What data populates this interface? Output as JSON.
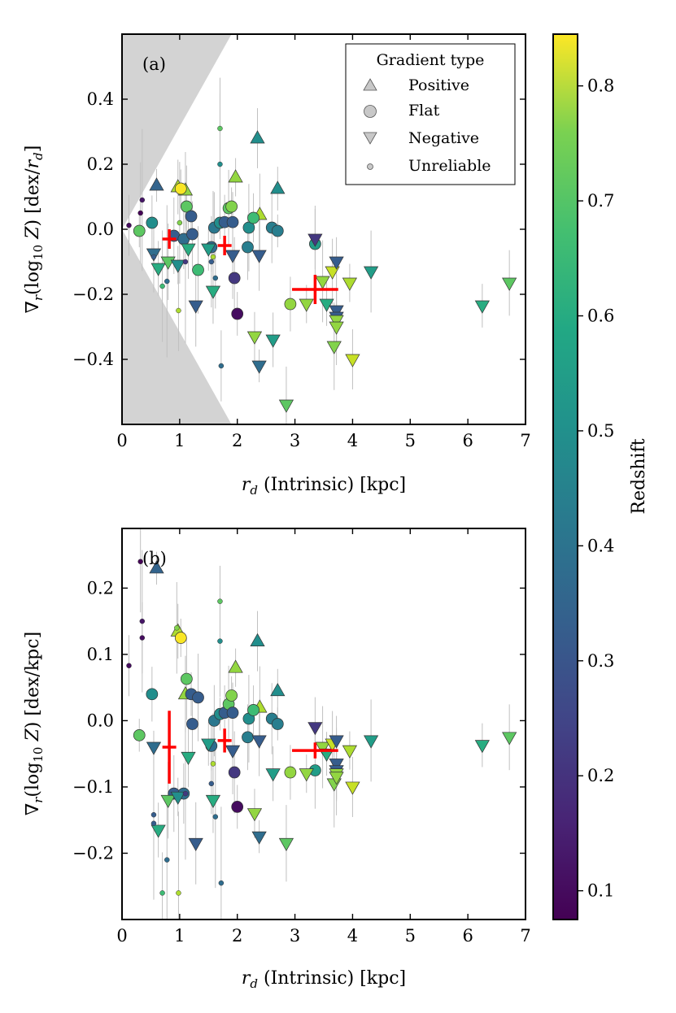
{
  "chart_data": [
    {
      "panel": "(a)",
      "type": "scatter",
      "xlabel": "r_d (Intrinsic) [kpc]",
      "ylabel": "∇_r(log10 Z) [dex/r_d]",
      "xlim": [
        0,
        7
      ],
      "ylim": [
        -0.6,
        0.6
      ],
      "xticks": [
        0,
        1,
        2,
        3,
        4,
        5,
        6,
        7
      ],
      "yticks": [
        -0.4,
        -0.2,
        0.0,
        0.2,
        0.4
      ],
      "ytick_labels": [
        "−0.4",
        "−0.2",
        "0.0",
        "0.2",
        "0.4"
      ],
      "grid": false,
      "shaded_region": "wedge from (0,0) to x = 1.9 (excluded region)",
      "legend": {
        "title": "Gradient type",
        "placement": "top-right",
        "entries": [
          "Positive",
          "Flat",
          "Negative",
          "Unreliable"
        ]
      },
      "binned_medians": [
        {
          "x": 0.82,
          "y": -0.03,
          "xerr": 0.12,
          "yerr": 0.03
        },
        {
          "x": 1.78,
          "y": -0.05,
          "xerr": 0.12,
          "yerr": 0.03
        },
        {
          "x": 3.35,
          "y": -0.185,
          "xerr": 0.4,
          "yerr": 0.045
        }
      ],
      "series": [
        {
          "type": "Positive",
          "points": [
            {
              "x": 0.6,
              "y": 0.135,
              "z": 0.32
            },
            {
              "x": 0.97,
              "y": 0.13,
              "z": 0.75
            },
            {
              "x": 1.1,
              "y": 0.12,
              "z": 0.72
            },
            {
              "x": 1.97,
              "y": 0.16,
              "z": 0.72
            },
            {
              "x": 2.35,
              "y": 0.28,
              "z": 0.45
            },
            {
              "x": 2.39,
              "y": 0.045,
              "z": 0.75
            },
            {
              "x": 2.7,
              "y": 0.125,
              "z": 0.45
            }
          ]
        },
        {
          "type": "Flat",
          "points": [
            {
              "x": 0.3,
              "y": -0.005,
              "z": 0.65
            },
            {
              "x": 0.52,
              "y": 0.02,
              "z": 0.45
            },
            {
              "x": 0.9,
              "y": -0.02,
              "z": 0.3
            },
            {
              "x": 1.02,
              "y": 0.125,
              "z": 0.84
            },
            {
              "x": 1.07,
              "y": -0.03,
              "z": 0.35
            },
            {
              "x": 1.12,
              "y": 0.07,
              "z": 0.65
            },
            {
              "x": 1.2,
              "y": 0.04,
              "z": 0.3
            },
            {
              "x": 1.22,
              "y": -0.015,
              "z": 0.3
            },
            {
              "x": 1.32,
              "y": -0.125,
              "z": 0.6
            },
            {
              "x": 1.55,
              "y": -0.055,
              "z": 0.35
            },
            {
              "x": 1.6,
              "y": 0.005,
              "z": 0.38
            },
            {
              "x": 1.7,
              "y": 0.02,
              "z": 0.45
            },
            {
              "x": 1.78,
              "y": 0.022,
              "z": 0.3
            },
            {
              "x": 1.85,
              "y": 0.065,
              "z": 0.65
            },
            {
              "x": 1.9,
              "y": 0.07,
              "z": 0.7
            },
            {
              "x": 1.92,
              "y": 0.022,
              "z": 0.3
            },
            {
              "x": 1.95,
              "y": -0.15,
              "z": 0.2
            },
            {
              "x": 2.0,
              "y": -0.26,
              "z": 0.1
            },
            {
              "x": 2.18,
              "y": -0.055,
              "z": 0.4
            },
            {
              "x": 2.2,
              "y": 0.005,
              "z": 0.45
            },
            {
              "x": 2.28,
              "y": 0.035,
              "z": 0.6
            },
            {
              "x": 2.6,
              "y": 0.005,
              "z": 0.4
            },
            {
              "x": 2.7,
              "y": -0.005,
              "z": 0.4
            },
            {
              "x": 2.92,
              "y": -0.23,
              "z": 0.72
            },
            {
              "x": 3.35,
              "y": -0.045,
              "z": 0.5
            }
          ]
        },
        {
          "type": "Negative",
          "points": [
            {
              "x": 0.55,
              "y": -0.075,
              "z": 0.35
            },
            {
              "x": 0.63,
              "y": -0.12,
              "z": 0.55
            },
            {
              "x": 0.8,
              "y": -0.1,
              "z": 0.65
            },
            {
              "x": 0.97,
              "y": -0.11,
              "z": 0.45
            },
            {
              "x": 1.15,
              "y": -0.06,
              "z": 0.55
            },
            {
              "x": 1.28,
              "y": -0.235,
              "z": 0.3
            },
            {
              "x": 1.5,
              "y": -0.06,
              "z": 0.5
            },
            {
              "x": 1.58,
              "y": -0.19,
              "z": 0.55
            },
            {
              "x": 1.92,
              "y": -0.08,
              "z": 0.3
            },
            {
              "x": 2.3,
              "y": -0.33,
              "z": 0.72
            },
            {
              "x": 2.38,
              "y": -0.08,
              "z": 0.3
            },
            {
              "x": 2.38,
              "y": -0.42,
              "z": 0.35
            },
            {
              "x": 2.62,
              "y": -0.34,
              "z": 0.5
            },
            {
              "x": 2.85,
              "y": -0.54,
              "z": 0.65
            },
            {
              "x": 3.2,
              "y": -0.23,
              "z": 0.72
            },
            {
              "x": 3.35,
              "y": -0.03,
              "z": 0.2
            },
            {
              "x": 3.48,
              "y": -0.16,
              "z": 0.72
            },
            {
              "x": 3.55,
              "y": -0.23,
              "z": 0.55
            },
            {
              "x": 3.65,
              "y": -0.13,
              "z": 0.78
            },
            {
              "x": 3.68,
              "y": -0.36,
              "z": 0.7
            },
            {
              "x": 3.72,
              "y": -0.1,
              "z": 0.3
            },
            {
              "x": 3.72,
              "y": -0.25,
              "z": 0.3
            },
            {
              "x": 3.72,
              "y": -0.27,
              "z": 0.3
            },
            {
              "x": 3.72,
              "y": -0.28,
              "z": 0.72
            },
            {
              "x": 3.72,
              "y": -0.3,
              "z": 0.72
            },
            {
              "x": 3.95,
              "y": -0.165,
              "z": 0.75
            },
            {
              "x": 4.0,
              "y": -0.4,
              "z": 0.78
            },
            {
              "x": 4.32,
              "y": -0.13,
              "z": 0.5
            },
            {
              "x": 6.25,
              "y": -0.235,
              "z": 0.55
            },
            {
              "x": 6.72,
              "y": -0.165,
              "z": 0.65
            }
          ]
        },
        {
          "type": "Unreliable",
          "points": [
            {
              "x": 0.12,
              "y": 0.012,
              "z": 0.1
            },
            {
              "x": 0.32,
              "y": 0.05,
              "z": 0.08
            },
            {
              "x": 0.35,
              "y": 0.09,
              "z": 0.12
            },
            {
              "x": 0.55,
              "y": -0.085,
              "z": 0.3
            },
            {
              "x": 0.7,
              "y": -0.175,
              "z": 0.6
            },
            {
              "x": 0.78,
              "y": -0.16,
              "z": 0.35
            },
            {
              "x": 0.98,
              "y": -0.25,
              "z": 0.75
            },
            {
              "x": 1.0,
              "y": 0.02,
              "z": 0.7
            },
            {
              "x": 1.1,
              "y": -0.1,
              "z": 0.2
            },
            {
              "x": 1.55,
              "y": -0.1,
              "z": 0.3
            },
            {
              "x": 1.58,
              "y": -0.085,
              "z": 0.75
            },
            {
              "x": 1.62,
              "y": -0.15,
              "z": 0.35
            },
            {
              "x": 1.7,
              "y": 0.31,
              "z": 0.65
            },
            {
              "x": 1.7,
              "y": 0.2,
              "z": 0.45
            },
            {
              "x": 1.72,
              "y": -0.42,
              "z": 0.35
            }
          ]
        }
      ]
    },
    {
      "panel": "(b)",
      "type": "scatter",
      "xlabel": "r_d (Intrinsic) [kpc]",
      "ylabel": "∇_r(log10 Z) [dex/kpc]",
      "xlim": [
        0,
        7
      ],
      "ylim": [
        -0.3,
        0.29
      ],
      "xticks": [
        0,
        1,
        2,
        3,
        4,
        5,
        6,
        7
      ],
      "yticks": [
        -0.2,
        -0.1,
        0.0,
        0.1,
        0.2
      ],
      "ytick_labels": [
        "−0.2",
        "−0.1",
        "0.0",
        "0.1",
        "0.2"
      ],
      "grid": false,
      "binned_medians": [
        {
          "x": 0.82,
          "y": -0.04,
          "xerr": 0.12,
          "yerr": 0.055
        },
        {
          "x": 1.78,
          "y": -0.03,
          "xerr": 0.12,
          "yerr": 0.018
        },
        {
          "x": 3.35,
          "y": -0.045,
          "xerr": 0.4,
          "yerr": 0.012
        }
      ],
      "series": [
        {
          "type": "Positive",
          "points": [
            {
              "x": 0.6,
              "y": 0.23,
              "z": 0.32
            },
            {
              "x": 0.97,
              "y": 0.135,
              "z": 0.75
            },
            {
              "x": 1.1,
              "y": 0.04,
              "z": 0.72
            },
            {
              "x": 1.97,
              "y": 0.08,
              "z": 0.72
            },
            {
              "x": 2.35,
              "y": 0.12,
              "z": 0.45
            },
            {
              "x": 2.39,
              "y": 0.02,
              "z": 0.75
            },
            {
              "x": 2.7,
              "y": 0.045,
              "z": 0.45
            }
          ]
        },
        {
          "type": "Flat",
          "points": [
            {
              "x": 0.3,
              "y": -0.022,
              "z": 0.65
            },
            {
              "x": 0.52,
              "y": 0.04,
              "z": 0.45
            },
            {
              "x": 0.9,
              "y": -0.11,
              "z": 0.3
            },
            {
              "x": 1.02,
              "y": 0.125,
              "z": 0.84
            },
            {
              "x": 1.07,
              "y": -0.11,
              "z": 0.35
            },
            {
              "x": 1.12,
              "y": 0.063,
              "z": 0.65
            },
            {
              "x": 1.2,
              "y": 0.04,
              "z": 0.3
            },
            {
              "x": 1.22,
              "y": -0.005,
              "z": 0.3
            },
            {
              "x": 1.32,
              "y": 0.035,
              "z": 0.3
            },
            {
              "x": 1.55,
              "y": -0.038,
              "z": 0.35
            },
            {
              "x": 1.6,
              "y": 0.0,
              "z": 0.38
            },
            {
              "x": 1.7,
              "y": 0.01,
              "z": 0.45
            },
            {
              "x": 1.78,
              "y": 0.012,
              "z": 0.3
            },
            {
              "x": 1.85,
              "y": 0.025,
              "z": 0.65
            },
            {
              "x": 1.9,
              "y": 0.038,
              "z": 0.7
            },
            {
              "x": 1.92,
              "y": 0.012,
              "z": 0.3
            },
            {
              "x": 1.95,
              "y": -0.078,
              "z": 0.2
            },
            {
              "x": 2.0,
              "y": -0.13,
              "z": 0.1
            },
            {
              "x": 2.18,
              "y": -0.025,
              "z": 0.4
            },
            {
              "x": 2.2,
              "y": 0.003,
              "z": 0.45
            },
            {
              "x": 2.28,
              "y": 0.016,
              "z": 0.6
            },
            {
              "x": 2.6,
              "y": 0.003,
              "z": 0.4
            },
            {
              "x": 2.7,
              "y": -0.005,
              "z": 0.4
            },
            {
              "x": 2.92,
              "y": -0.078,
              "z": 0.72
            },
            {
              "x": 3.35,
              "y": -0.075,
              "z": 0.5
            }
          ]
        },
        {
          "type": "Negative",
          "points": [
            {
              "x": 0.55,
              "y": -0.04,
              "z": 0.35
            },
            {
              "x": 0.63,
              "y": -0.165,
              "z": 0.55
            },
            {
              "x": 0.8,
              "y": -0.12,
              "z": 0.65
            },
            {
              "x": 0.97,
              "y": -0.115,
              "z": 0.45
            },
            {
              "x": 1.15,
              "y": -0.055,
              "z": 0.55
            },
            {
              "x": 1.28,
              "y": -0.185,
              "z": 0.3
            },
            {
              "x": 1.5,
              "y": -0.035,
              "z": 0.5
            },
            {
              "x": 1.58,
              "y": -0.12,
              "z": 0.55
            },
            {
              "x": 1.92,
              "y": -0.045,
              "z": 0.3
            },
            {
              "x": 2.3,
              "y": -0.14,
              "z": 0.72
            },
            {
              "x": 2.38,
              "y": -0.03,
              "z": 0.3
            },
            {
              "x": 2.38,
              "y": -0.175,
              "z": 0.35
            },
            {
              "x": 2.62,
              "y": -0.08,
              "z": 0.5
            },
            {
              "x": 2.85,
              "y": -0.185,
              "z": 0.65
            },
            {
              "x": 3.2,
              "y": -0.08,
              "z": 0.72
            },
            {
              "x": 3.35,
              "y": -0.01,
              "z": 0.2
            },
            {
              "x": 3.48,
              "y": -0.04,
              "z": 0.72
            },
            {
              "x": 3.55,
              "y": -0.05,
              "z": 0.55
            },
            {
              "x": 3.65,
              "y": -0.035,
              "z": 0.78
            },
            {
              "x": 3.68,
              "y": -0.095,
              "z": 0.7
            },
            {
              "x": 3.72,
              "y": -0.03,
              "z": 0.3
            },
            {
              "x": 3.72,
              "y": -0.065,
              "z": 0.3
            },
            {
              "x": 3.72,
              "y": -0.075,
              "z": 0.3
            },
            {
              "x": 3.72,
              "y": -0.08,
              "z": 0.72
            },
            {
              "x": 3.72,
              "y": -0.085,
              "z": 0.72
            },
            {
              "x": 3.95,
              "y": -0.045,
              "z": 0.75
            },
            {
              "x": 4.0,
              "y": -0.1,
              "z": 0.78
            },
            {
              "x": 4.32,
              "y": -0.03,
              "z": 0.5
            },
            {
              "x": 6.25,
              "y": -0.037,
              "z": 0.55
            },
            {
              "x": 6.72,
              "y": -0.025,
              "z": 0.65
            }
          ]
        },
        {
          "type": "Unreliable",
          "points": [
            {
              "x": 0.12,
              "y": 0.083,
              "z": 0.1
            },
            {
              "x": 0.32,
              "y": 0.24,
              "z": 0.08
            },
            {
              "x": 0.35,
              "y": 0.15,
              "z": 0.12
            },
            {
              "x": 0.35,
              "y": 0.125,
              "z": 0.1
            },
            {
              "x": 0.55,
              "y": -0.142,
              "z": 0.3
            },
            {
              "x": 0.55,
              "y": -0.155,
              "z": 0.3
            },
            {
              "x": 0.7,
              "y": -0.26,
              "z": 0.6
            },
            {
              "x": 0.78,
              "y": -0.21,
              "z": 0.35
            },
            {
              "x": 0.98,
              "y": -0.26,
              "z": 0.75
            },
            {
              "x": 0.95,
              "y": 0.14,
              "z": 0.7
            },
            {
              "x": 1.1,
              "y": -0.11,
              "z": 0.2
            },
            {
              "x": 1.55,
              "y": -0.095,
              "z": 0.3
            },
            {
              "x": 1.58,
              "y": -0.065,
              "z": 0.75
            },
            {
              "x": 1.62,
              "y": -0.145,
              "z": 0.35
            },
            {
              "x": 1.7,
              "y": 0.18,
              "z": 0.65
            },
            {
              "x": 1.7,
              "y": 0.12,
              "z": 0.45
            },
            {
              "x": 1.72,
              "y": -0.245,
              "z": 0.35
            }
          ]
        }
      ]
    }
  ],
  "colorbar": {
    "label": "Redshift",
    "range": [
      0.075,
      0.845
    ],
    "colormap": "viridis",
    "ticks": [
      0.1,
      0.2,
      0.3,
      0.4,
      0.5,
      0.6,
      0.7,
      0.8
    ],
    "tick_labels": [
      "0.1",
      "0.2",
      "0.3",
      "0.4",
      "0.5",
      "0.6",
      "0.7",
      "0.8"
    ]
  },
  "colors": {
    "median_marker": "#ff0000",
    "error_bar": "#c0c0c0",
    "shaded_region": "#d3d3d3",
    "legend_marker": "#c8c8c8"
  }
}
